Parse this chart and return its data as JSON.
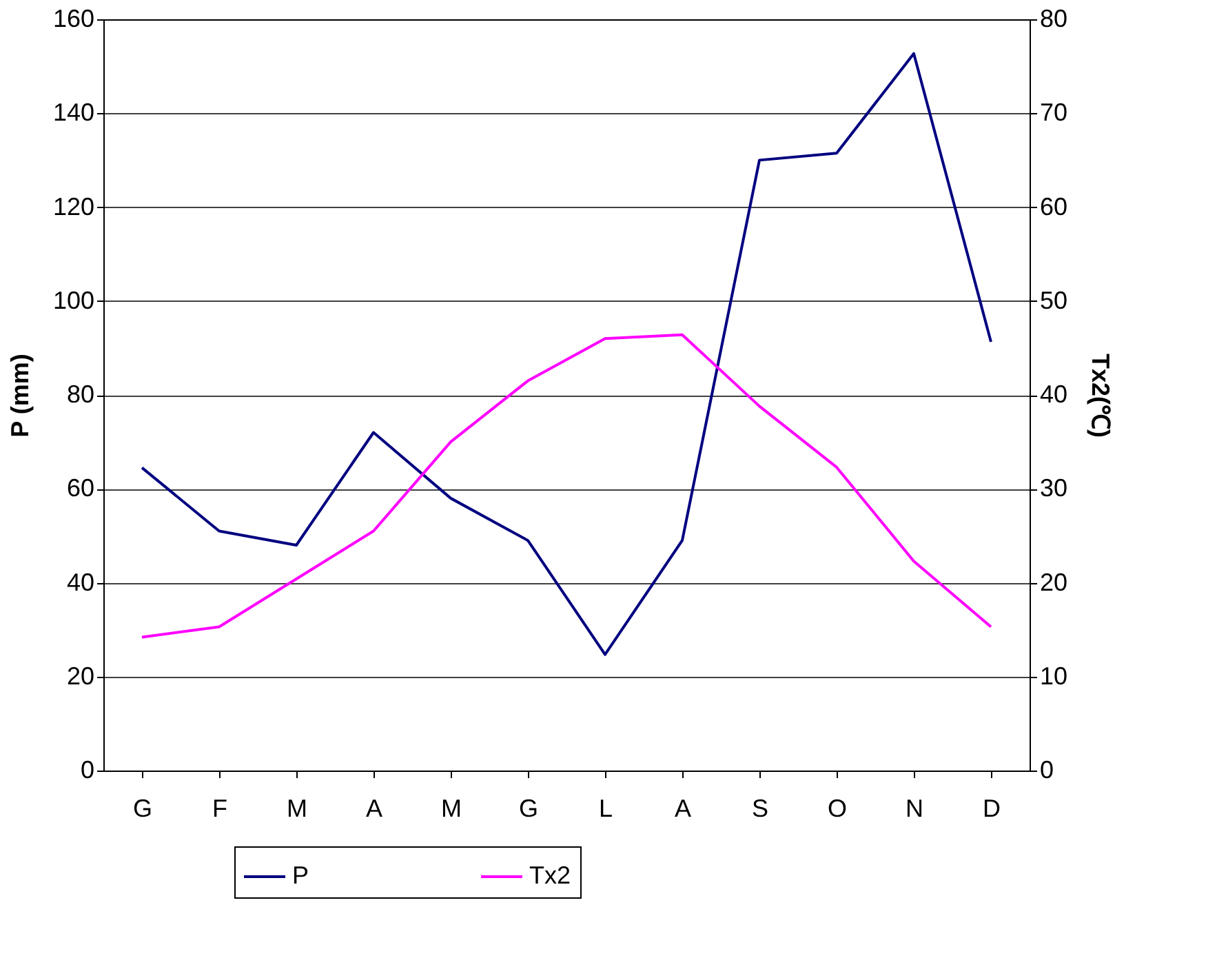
{
  "chart_data": {
    "type": "line",
    "ylabel": "P (mm)",
    "y2label": "Tx2(℃)",
    "categories": [
      "G",
      "F",
      "M",
      "A",
      "M",
      "G",
      "L",
      "A",
      "S",
      "O",
      "N",
      "D"
    ],
    "series": [
      {
        "name": "P",
        "color": "#000080",
        "values": [
          64.5,
          51,
          48,
          72,
          58,
          49,
          24.7,
          49,
          130,
          131.5,
          152.7,
          91.3
        ]
      },
      {
        "name": "Tx2",
        "color": "#ff00ff",
        "axis": "y2",
        "values": [
          14.2,
          15.3,
          20.4,
          25.5,
          35,
          41.5,
          46,
          46.4,
          38.8,
          32.3,
          22.3,
          15.3
        ]
      }
    ],
    "ylim": [
      0,
      160
    ],
    "yticks": [
      0,
      20,
      40,
      60,
      80,
      100,
      120,
      140,
      160
    ],
    "y2lim": [
      0,
      80
    ],
    "y2ticks": [
      0,
      10,
      20,
      30,
      40,
      50,
      60,
      70,
      80
    ],
    "grid": "y",
    "legend": "bottom",
    "marker": "none",
    "line_style": "solid"
  }
}
